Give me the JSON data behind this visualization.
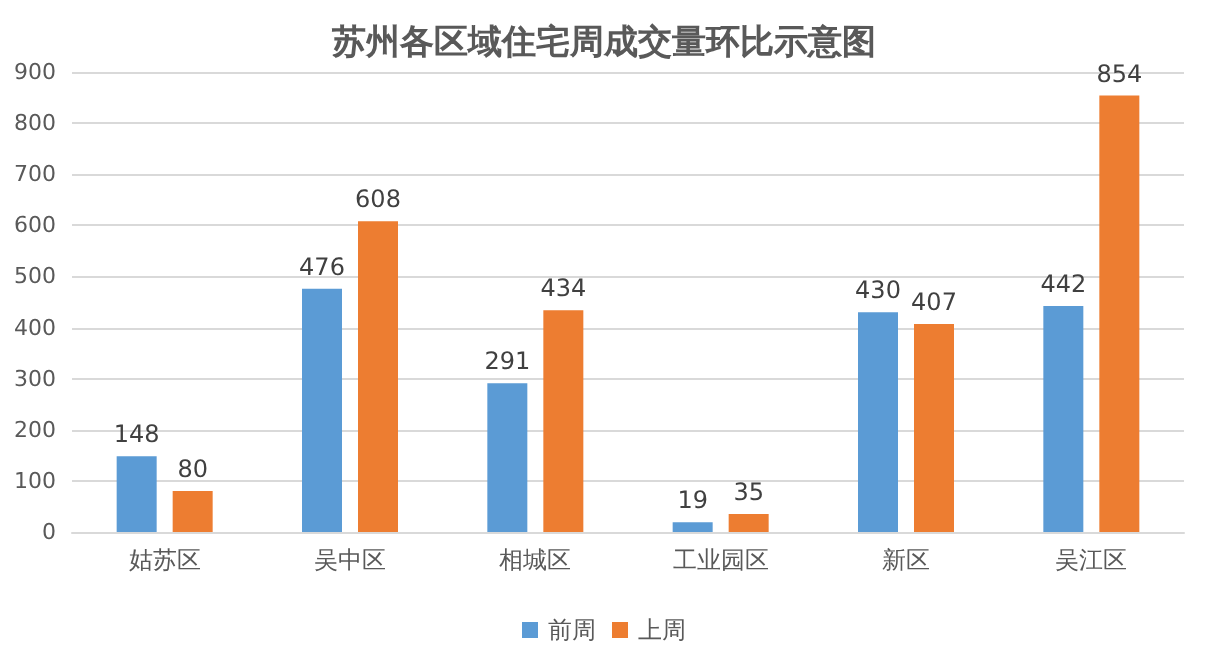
{
  "chart_data": {
    "type": "bar",
    "title": "苏州各区域住宅周成交量环比示意图",
    "categories": [
      "姑苏区",
      "吴中区",
      "相城区",
      "工业园区",
      "新区",
      "吴江区"
    ],
    "series": [
      {
        "name": "前周",
        "color": "#5b9bd5",
        "values": [
          148,
          476,
          291,
          19,
          430,
          442
        ]
      },
      {
        "name": "上周",
        "color": "#ed7d31",
        "values": [
          80,
          608,
          434,
          35,
          407,
          854
        ]
      }
    ],
    "ylim": [
      0,
      900
    ],
    "yticks": [
      0,
      100,
      200,
      300,
      400,
      500,
      600,
      700,
      800,
      900
    ],
    "grid": "y",
    "legend": "bottom",
    "data_labels": true
  }
}
